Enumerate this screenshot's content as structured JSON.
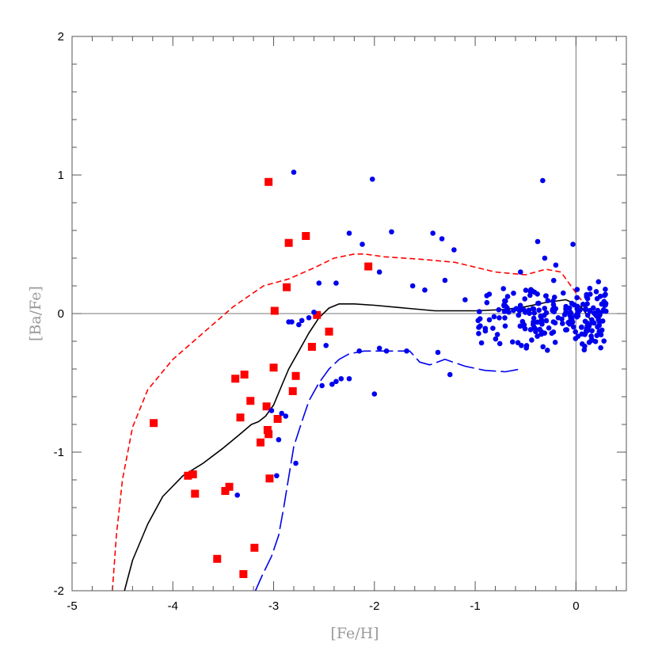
{
  "chart_data": {
    "type": "scatter",
    "xlabel": "[Fe/H]",
    "ylabel": "[Ba/Fe]",
    "xlim": [
      -5,
      0.5
    ],
    "ylim": [
      -2,
      2
    ],
    "x_ticks": [
      "-5",
      "-4",
      "-3",
      "-2",
      "-1",
      "0"
    ],
    "y_ticks": [
      "-2",
      "-1",
      "0",
      "1",
      "2"
    ],
    "reference_lines": {
      "x": 0,
      "y": 0
    },
    "colors": {
      "red": "#ff0000",
      "blue": "#0000ee",
      "black": "#000000",
      "frame": "#555555"
    },
    "series": [
      {
        "marker": "square",
        "color": "red",
        "x": [
          -3.05,
          -2.68,
          -2.85,
          -2.87,
          -2.99,
          -2.57,
          -2.45,
          -2.62,
          -2.78,
          -3.38,
          -3.29,
          -3.0,
          -2.81,
          -3.23,
          -3.07,
          -3.33,
          -3.06,
          -2.96,
          -3.05,
          -3.13,
          -4.19,
          -3.85,
          -3.8,
          -3.78,
          -3.44,
          -3.48,
          -3.04,
          -3.19,
          -3.56,
          -3.3,
          -2.06
        ],
        "y": [
          0.95,
          0.56,
          0.51,
          0.19,
          0.02,
          -0.01,
          -0.13,
          -0.24,
          -0.45,
          -0.47,
          -0.44,
          -0.39,
          -0.56,
          -0.63,
          -0.67,
          -0.75,
          -0.84,
          -0.76,
          -0.87,
          -0.93,
          -0.79,
          -1.17,
          -1.16,
          -1.3,
          -1.25,
          -1.28,
          -1.19,
          -1.69,
          -1.77,
          -1.88,
          0.34
        ]
      },
      {
        "marker": "circle",
        "color": "blue",
        "x": [
          -2.8,
          -2.02,
          -2.25,
          -2.12,
          -1.83,
          -1.42,
          -1.33,
          -1.21,
          -0.33,
          -0.03,
          -0.38,
          -0.31,
          -2.38,
          -1.95,
          -1.62,
          -1.5,
          -1.3,
          -1.1,
          -0.86,
          -0.72,
          -0.55,
          -2.55,
          -2.65,
          -2.75,
          -2.82,
          -2.48,
          -2.6,
          -2.33,
          -2.15,
          -2.42,
          -1.95,
          -2.25,
          -2.38,
          -1.88,
          -1.68,
          -1.37,
          -1.25,
          -2.52,
          -2.72,
          -2.85,
          -3.02,
          -2.92,
          -2.88,
          -2.95,
          -2.78,
          -2.97,
          -3.36,
          -2.0,
          -0.4,
          -0.2
        ],
        "y": [
          1.02,
          0.97,
          0.58,
          0.5,
          0.59,
          0.58,
          0.54,
          0.46,
          0.96,
          0.5,
          0.52,
          0.4,
          0.22,
          0.3,
          0.2,
          0.17,
          0.24,
          0.1,
          0.14,
          0.18,
          0.3,
          0.22,
          -0.03,
          -0.08,
          -0.06,
          -0.23,
          0.01,
          -0.47,
          -0.27,
          -0.51,
          -0.25,
          -0.47,
          -0.49,
          -0.27,
          -0.27,
          -0.28,
          -0.44,
          -0.52,
          -0.05,
          -0.06,
          -0.7,
          -0.72,
          -0.74,
          -0.91,
          -1.08,
          -1.17,
          -1.31,
          -0.58,
          -0.13,
          0.35
        ]
      }
    ],
    "lines": [
      {
        "color": "black",
        "style": "solid",
        "x": [
          -4.48,
          -4.4,
          -4.25,
          -4.1,
          -3.9,
          -3.7,
          -3.5,
          -3.35,
          -3.22,
          -3.15,
          -3.08,
          -3.0,
          -2.92,
          -2.85,
          -2.75,
          -2.65,
          -2.55,
          -2.45,
          -2.35,
          -2.2,
          -2.0,
          -1.7,
          -1.4,
          -1.0,
          -0.7,
          -0.5,
          -0.3,
          -0.1,
          0.05,
          0.15
        ],
        "y": [
          -2.0,
          -1.78,
          -1.52,
          -1.32,
          -1.17,
          -1.08,
          -0.97,
          -0.88,
          -0.8,
          -0.78,
          -0.74,
          -0.66,
          -0.52,
          -0.4,
          -0.27,
          -0.14,
          -0.03,
          0.04,
          0.07,
          0.07,
          0.06,
          0.04,
          0.02,
          0.02,
          0.03,
          0.05,
          0.08,
          0.1,
          0.05,
          -0.05
        ]
      },
      {
        "color": "red",
        "style": "dashed",
        "x": [
          -4.6,
          -4.56,
          -4.5,
          -4.4,
          -4.25,
          -4.0,
          -3.7,
          -3.4,
          -3.1,
          -2.85,
          -2.6,
          -2.4,
          -2.2,
          -2.1,
          -1.9,
          -1.5,
          -1.2,
          -0.8,
          -0.5,
          -0.3,
          -0.15,
          -0.05,
          0.05,
          0.15
        ],
        "y": [
          -2.0,
          -1.6,
          -1.2,
          -0.82,
          -0.55,
          -0.33,
          -0.14,
          0.05,
          0.2,
          0.25,
          0.33,
          0.4,
          0.43,
          0.43,
          0.41,
          0.39,
          0.37,
          0.3,
          0.28,
          0.32,
          0.3,
          0.2,
          0.1,
          0.0
        ]
      },
      {
        "color": "blue",
        "style": "long-dashed",
        "x": [
          -3.18,
          -3.12,
          -3.02,
          -2.95,
          -2.9,
          -2.85,
          -2.8,
          -2.72,
          -2.65,
          -2.55,
          -2.45,
          -2.35,
          -2.25,
          -2.1,
          -1.9,
          -1.65,
          -1.55,
          -1.45,
          -1.3,
          -1.1,
          -0.9,
          -0.7,
          -0.55
        ],
        "y": [
          -2.0,
          -1.9,
          -1.75,
          -1.6,
          -1.4,
          -1.18,
          -0.96,
          -0.78,
          -0.63,
          -0.5,
          -0.4,
          -0.33,
          -0.29,
          -0.27,
          -0.27,
          -0.27,
          -0.35,
          -0.37,
          -0.33,
          -0.38,
          -0.41,
          -0.42,
          -0.4
        ]
      }
    ],
    "blue_cluster": {
      "note_free": true,
      "x_range": [
        -1.0,
        0.3
      ],
      "y_range": [
        -0.3,
        0.25
      ],
      "count": 220
    }
  }
}
